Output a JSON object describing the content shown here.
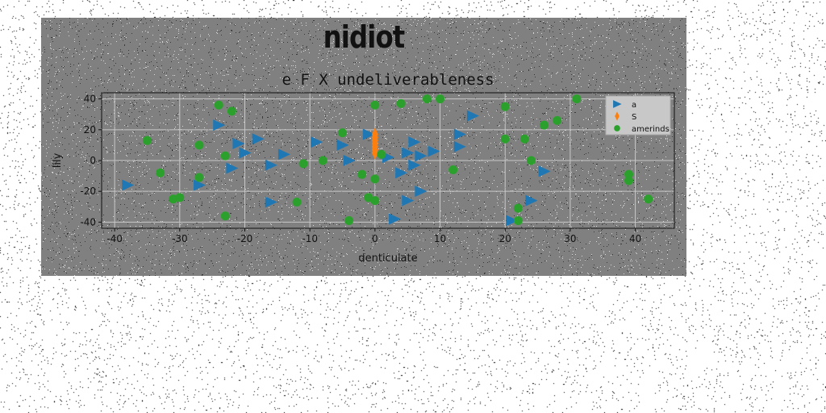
{
  "suptitle": "nidiot",
  "colors": {
    "panel": "#808080",
    "a": "#1f77b4",
    "S": "#ff7f0e",
    "amerinds": "#2ca02c"
  },
  "chart_data": {
    "type": "scatter",
    "title": "e F X undeliverableness",
    "xlabel": "denticulate",
    "ylabel": "lily",
    "xlim": [
      -42,
      46
    ],
    "ylim": [
      -44,
      44
    ],
    "xticks": [
      -40,
      -30,
      -20,
      -10,
      0,
      10,
      20,
      30,
      40
    ],
    "yticks": [
      -40,
      -20,
      0,
      20,
      40
    ],
    "grid": true,
    "legend_position": "top-right",
    "series": [
      {
        "name": "a",
        "marker": "triangle-right",
        "color": "#1f77b4",
        "points": [
          [
            -38,
            -16
          ],
          [
            -27,
            -16
          ],
          [
            -24,
            23
          ],
          [
            -22,
            -5
          ],
          [
            -21,
            11
          ],
          [
            -20,
            5
          ],
          [
            -18,
            14
          ],
          [
            -16,
            -27
          ],
          [
            -16,
            -3
          ],
          [
            -14,
            4
          ],
          [
            -9,
            12
          ],
          [
            -5,
            10
          ],
          [
            -4,
            0
          ],
          [
            -1,
            17
          ],
          [
            2,
            2
          ],
          [
            3,
            -38
          ],
          [
            4,
            -8
          ],
          [
            5,
            5
          ],
          [
            5,
            -26
          ],
          [
            6,
            12
          ],
          [
            6,
            -3
          ],
          [
            7,
            -20
          ],
          [
            7,
            3
          ],
          [
            9,
            6
          ],
          [
            13,
            9
          ],
          [
            13,
            17
          ],
          [
            15,
            29
          ],
          [
            21,
            -39
          ],
          [
            24,
            -26
          ],
          [
            26,
            -7
          ]
        ]
      },
      {
        "name": "S",
        "marker": "thin-diamond",
        "color": "#ff7f0e",
        "points": [
          [
            0,
            5
          ],
          [
            0,
            7
          ],
          [
            0,
            9
          ],
          [
            0,
            11
          ],
          [
            0,
            13
          ],
          [
            0,
            15
          ],
          [
            0,
            17
          ]
        ]
      },
      {
        "name": "amerinds",
        "marker": "circle",
        "color": "#2ca02c",
        "points": [
          [
            -35,
            13
          ],
          [
            -33,
            -8
          ],
          [
            -31,
            -25
          ],
          [
            -30,
            -24
          ],
          [
            -27,
            10
          ],
          [
            -27,
            -11
          ],
          [
            -24,
            36
          ],
          [
            -23,
            3
          ],
          [
            -23,
            -36
          ],
          [
            -22,
            32
          ],
          [
            -12,
            -27
          ],
          [
            -11,
            -2
          ],
          [
            -8,
            0
          ],
          [
            -5,
            18
          ],
          [
            -4,
            -39
          ],
          [
            -2,
            -9
          ],
          [
            -1,
            -24
          ],
          [
            0,
            -12
          ],
          [
            0,
            36
          ],
          [
            0,
            -26
          ],
          [
            1,
            4
          ],
          [
            4,
            37
          ],
          [
            8,
            40
          ],
          [
            10,
            40
          ],
          [
            12,
            -6
          ],
          [
            20,
            14
          ],
          [
            20,
            35
          ],
          [
            22,
            -31
          ],
          [
            22,
            -39
          ],
          [
            23,
            14
          ],
          [
            24,
            0
          ],
          [
            26,
            23
          ],
          [
            28,
            26
          ],
          [
            31,
            40
          ],
          [
            39,
            -9
          ],
          [
            39,
            -13
          ],
          [
            42,
            -25
          ]
        ]
      }
    ]
  }
}
